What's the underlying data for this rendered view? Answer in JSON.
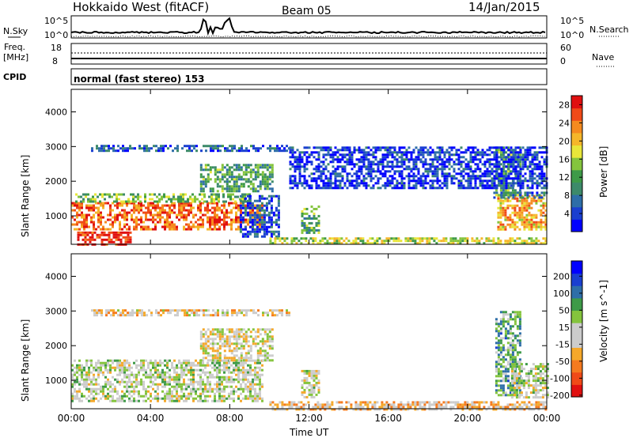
{
  "header": {
    "title": "Hokkaido West (fitACF)",
    "beam": "Beam 05",
    "date": "14/Jan/2015"
  },
  "summary_panels": {
    "nsky_label": "N.Sky",
    "nsky_ticks": [
      "10^5",
      "10^0"
    ],
    "nsearch_label": "N.Search",
    "nsearch_ticks": [
      "10^5",
      "10^0"
    ],
    "freq_label": "Freq.",
    "freq_unit": "[MHz]",
    "freq_ticks": [
      "18",
      "8"
    ],
    "nave_label": "Nave",
    "nave_ticks": [
      "60",
      "0"
    ],
    "cpid_label": "CPID",
    "cpid_text": "normal (fast stereo) 153"
  },
  "chart_data": [
    {
      "type": "heatmap",
      "panel": "power",
      "ylabel": "Slant Range [km]",
      "xlabel": "",
      "x_ticks": [
        "00:00",
        "04:00",
        "08:00",
        "12:00",
        "16:00",
        "20:00",
        "00:00"
      ],
      "y_ticks": [
        1000,
        2000,
        3000,
        4000
      ],
      "ylim": [
        180,
        4650
      ],
      "xlim_hours": [
        0,
        24
      ],
      "colorbar": {
        "label": "Power [dB]",
        "ticks": [
          4,
          8,
          12,
          16,
          20,
          24,
          28
        ],
        "range": [
          0,
          30
        ],
        "colors": [
          "#0000ff",
          "#1a3fd0",
          "#2e6ea8",
          "#3d8a6a",
          "#3e9a48",
          "#84c43d",
          "#e8e63a",
          "#f5b62a",
          "#f58a1f",
          "#f04a18",
          "#e01010"
        ]
      },
      "regions": [
        {
          "h0": 0.0,
          "h1": 9.6,
          "r0": 600,
          "r1": 1400,
          "level": 0.82
        },
        {
          "h0": 0.2,
          "h1": 9.0,
          "r0": 1400,
          "r1": 1650,
          "level": 0.45
        },
        {
          "h0": 0.3,
          "h1": 3.0,
          "r0": 180,
          "r1": 550,
          "level": 0.95
        },
        {
          "h0": 6.5,
          "h1": 10.2,
          "r0": 1700,
          "r1": 2500,
          "level": 0.38
        },
        {
          "h0": 8.5,
          "h1": 10.5,
          "r0": 400,
          "r1": 1600,
          "level": 0.18
        },
        {
          "h0": 11.6,
          "h1": 12.5,
          "r0": 500,
          "r1": 1300,
          "level": 0.4
        },
        {
          "h0": 10.0,
          "h1": 24.0,
          "r0": 180,
          "r1": 380,
          "level": 0.55
        },
        {
          "h0": 21.5,
          "h1": 24.0,
          "r0": 600,
          "r1": 1600,
          "level": 0.7
        },
        {
          "h0": 21.3,
          "h1": 24.0,
          "r0": 1500,
          "r1": 1700,
          "level": 0.25
        },
        {
          "h0": 21.4,
          "h1": 22.6,
          "r0": 1600,
          "r1": 3000,
          "level": 0.4
        },
        {
          "h0": 1.0,
          "h1": 11.0,
          "r0": 2900,
          "r1": 3050,
          "level": 0.2
        },
        {
          "h0": 11.0,
          "h1": 24.0,
          "r0": 1800,
          "r1": 3000,
          "level": 0.12
        }
      ]
    },
    {
      "type": "heatmap",
      "panel": "velocity",
      "ylabel": "Slant Range [km]",
      "xlabel": "Time UT",
      "x_ticks": [
        "00:00",
        "04:00",
        "08:00",
        "12:00",
        "16:00",
        "20:00",
        "00:00"
      ],
      "y_ticks": [
        1000,
        2000,
        3000,
        4000
      ],
      "ylim": [
        180,
        4650
      ],
      "xlim_hours": [
        0,
        24
      ],
      "colorbar": {
        "label": "Velocity [m s^-1]",
        "ticks": [
          200,
          100,
          50,
          15,
          -15,
          -50,
          -100,
          -200
        ],
        "range": [
          -250,
          250
        ],
        "colors": [
          "#e01010",
          "#f04a18",
          "#f57a1f",
          "#f5a82a",
          "#cccccc",
          "#cccccc",
          "#84c43d",
          "#3e9a48",
          "#2e6ea8",
          "#1a3fd0",
          "#0000ff"
        ]
      },
      "regions": [
        {
          "h0": 0.0,
          "h1": 9.6,
          "r0": 400,
          "r1": 1600,
          "level": 0.5
        },
        {
          "h0": 6.5,
          "h1": 10.2,
          "r0": 1600,
          "r1": 2500,
          "level": 0.45
        },
        {
          "h0": 11.6,
          "h1": 12.5,
          "r0": 500,
          "r1": 1300,
          "level": 0.47
        },
        {
          "h0": 10.0,
          "h1": 24.0,
          "r0": 180,
          "r1": 400,
          "level": 0.36
        },
        {
          "h0": 21.4,
          "h1": 22.6,
          "r0": 600,
          "r1": 3000,
          "level": 0.65
        },
        {
          "h0": 22.2,
          "h1": 24.0,
          "r0": 500,
          "r1": 1500,
          "level": 0.5
        },
        {
          "h0": 1.0,
          "h1": 11.0,
          "r0": 2900,
          "r1": 3050,
          "level": 0.4
        }
      ]
    }
  ]
}
